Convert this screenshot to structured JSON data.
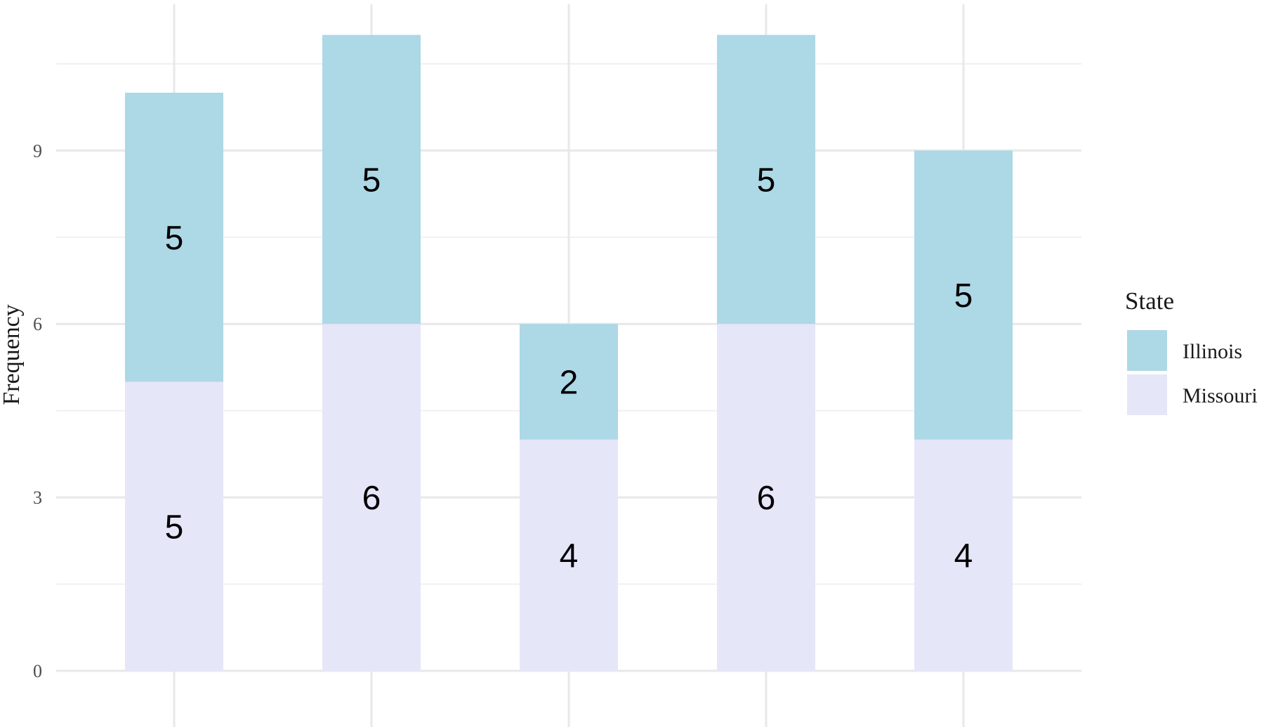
{
  "chart_data": {
    "type": "bar",
    "stacked": true,
    "categories": [
      "",
      "",
      "",
      "",
      ""
    ],
    "series": [
      {
        "name": "Missouri",
        "values": [
          5,
          6,
          4,
          6,
          4
        ],
        "color": "#e6e6f9"
      },
      {
        "name": "Illinois",
        "values": [
          5,
          5,
          2,
          5,
          5
        ],
        "color": "#add8e6"
      }
    ],
    "xlabel": "",
    "ylabel": "Frequency",
    "ylim": [
      0,
      11.5
    ],
    "yticks": [
      0,
      3,
      6,
      9
    ],
    "grid": true,
    "legend": {
      "title": "State",
      "position": "right",
      "entries": [
        "Illinois",
        "Missouri"
      ]
    }
  }
}
